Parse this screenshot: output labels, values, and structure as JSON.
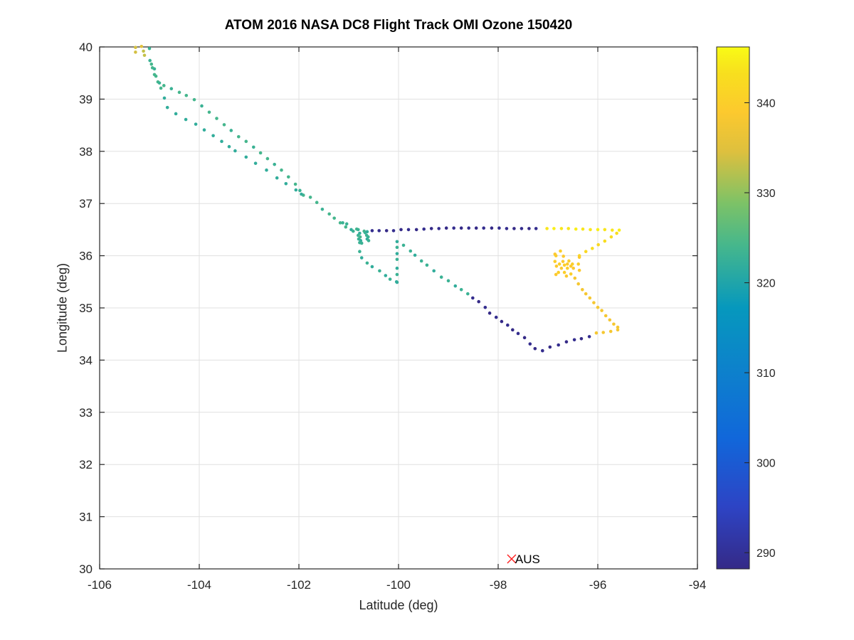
{
  "chart_data": {
    "type": "scatter",
    "title": "ATOM 2016 NASA DC8 Flight Track OMI Ozone 150420",
    "xlabel": "Latitude (deg)",
    "ylabel": "Longitude (deg)",
    "xlim": [
      -106,
      -94
    ],
    "ylim": [
      30,
      40
    ],
    "xticks": [
      -106,
      -104,
      -102,
      -100,
      -98,
      -96,
      -94
    ],
    "yticks": [
      30,
      31,
      32,
      33,
      34,
      35,
      36,
      37,
      38,
      39,
      40
    ],
    "grid": true,
    "colorbar": {
      "colormap": "parula",
      "min": 288.2,
      "max": 346.2,
      "ticks": [
        290,
        300,
        310,
        320,
        330,
        340
      ]
    },
    "marker": {
      "label": "AUS",
      "x": -97.73,
      "y": 30.19,
      "color": "#ff2020"
    },
    "points": [
      [
        -105.28,
        39.99,
        334
      ],
      [
        -105.28,
        39.9,
        334
      ],
      [
        -105.16,
        40.01,
        335
      ],
      [
        -105.12,
        39.92,
        333
      ],
      [
        -105.1,
        39.84,
        333
      ],
      [
        -105.0,
        39.97,
        323
      ],
      [
        -104.99,
        39.74,
        323
      ],
      [
        -104.96,
        39.67,
        324
      ],
      [
        -104.94,
        39.6,
        324
      ],
      [
        -104.9,
        39.58,
        323
      ],
      [
        -104.9,
        39.47,
        324
      ],
      [
        -104.87,
        39.44,
        324
      ],
      [
        -104.83,
        39.33,
        324
      ],
      [
        -104.8,
        39.31,
        323
      ],
      [
        -104.77,
        39.21,
        324
      ],
      [
        -104.71,
        39.26,
        324
      ],
      [
        -104.56,
        39.2,
        323
      ],
      [
        -104.4,
        39.13,
        324
      ],
      [
        -104.26,
        39.07,
        324
      ],
      [
        -104.1,
        38.99,
        324
      ],
      [
        -103.95,
        38.87,
        323
      ],
      [
        -103.8,
        38.75,
        324
      ],
      [
        -103.65,
        38.63,
        324
      ],
      [
        -103.5,
        38.51,
        324
      ],
      [
        -103.36,
        38.4,
        323
      ],
      [
        -103.21,
        38.28,
        324
      ],
      [
        -103.06,
        38.19,
        324
      ],
      [
        -102.91,
        38.08,
        323
      ],
      [
        -102.77,
        37.97,
        324
      ],
      [
        -102.63,
        37.86,
        324
      ],
      [
        -102.49,
        37.75,
        323
      ],
      [
        -102.35,
        37.64,
        324
      ],
      [
        -102.21,
        37.51,
        324
      ],
      [
        -102.07,
        37.37,
        324
      ],
      [
        -101.98,
        37.25,
        323
      ],
      [
        -101.91,
        37.16,
        324
      ],
      [
        -101.77,
        37.12,
        324
      ],
      [
        -101.64,
        37.02,
        324
      ],
      [
        -101.53,
        36.89,
        323
      ],
      [
        -101.39,
        36.8,
        324
      ],
      [
        -101.29,
        36.72,
        324
      ],
      [
        -101.17,
        36.63,
        324
      ],
      [
        -101.06,
        36.55,
        324
      ],
      [
        -104.7,
        39.02,
        322
      ],
      [
        -104.64,
        38.84,
        322
      ],
      [
        -104.47,
        38.72,
        322
      ],
      [
        -104.27,
        38.61,
        322
      ],
      [
        -104.07,
        38.52,
        322
      ],
      [
        -103.9,
        38.41,
        322
      ],
      [
        -103.72,
        38.3,
        322
      ],
      [
        -103.55,
        38.19,
        322
      ],
      [
        -103.4,
        38.09,
        322
      ],
      [
        -103.28,
        38.01,
        322
      ],
      [
        -103.06,
        37.89,
        322
      ],
      [
        -102.87,
        37.77,
        322
      ],
      [
        -102.65,
        37.64,
        322
      ],
      [
        -102.44,
        37.49,
        322
      ],
      [
        -102.26,
        37.38,
        322
      ],
      [
        -102.06,
        37.26,
        322
      ],
      [
        -101.95,
        37.18,
        322
      ],
      [
        -101.12,
        36.63,
        323
      ],
      [
        -101.04,
        36.61,
        323
      ],
      [
        -100.95,
        36.5,
        322
      ],
      [
        -100.91,
        36.47,
        323
      ],
      [
        -100.84,
        36.51,
        324
      ],
      [
        -100.81,
        36.5,
        323
      ],
      [
        -100.78,
        36.43,
        322
      ],
      [
        -100.81,
        36.39,
        323
      ],
      [
        -100.77,
        36.36,
        324
      ],
      [
        -100.8,
        36.32,
        323
      ],
      [
        -100.76,
        36.29,
        322
      ],
      [
        -100.78,
        36.25,
        323
      ],
      [
        -100.74,
        36.24,
        323
      ],
      [
        -100.69,
        36.47,
        324
      ],
      [
        -100.67,
        36.44,
        323
      ],
      [
        -100.63,
        36.46,
        322
      ],
      [
        -100.64,
        36.39,
        323
      ],
      [
        -100.61,
        36.36,
        323
      ],
      [
        -100.63,
        36.32,
        322
      ],
      [
        -100.6,
        36.29,
        323
      ],
      [
        -100.53,
        36.48,
        289
      ],
      [
        -100.39,
        36.48,
        289
      ],
      [
        -100.24,
        36.48,
        288
      ],
      [
        -100.1,
        36.48,
        289
      ],
      [
        -99.95,
        36.5,
        288
      ],
      [
        -99.8,
        36.5,
        289
      ],
      [
        -99.64,
        36.5,
        288
      ],
      [
        -99.49,
        36.51,
        289
      ],
      [
        -99.34,
        36.52,
        288
      ],
      [
        -99.19,
        36.52,
        289
      ],
      [
        -99.04,
        36.53,
        288
      ],
      [
        -98.89,
        36.53,
        289
      ],
      [
        -98.74,
        36.53,
        288
      ],
      [
        -98.59,
        36.53,
        289
      ],
      [
        -98.44,
        36.53,
        288
      ],
      [
        -98.29,
        36.53,
        289
      ],
      [
        -98.13,
        36.53,
        288
      ],
      [
        -97.98,
        36.53,
        289
      ],
      [
        -97.83,
        36.52,
        289
      ],
      [
        -97.68,
        36.52,
        288
      ],
      [
        -97.53,
        36.52,
        289
      ],
      [
        -97.38,
        36.52,
        288
      ],
      [
        -97.24,
        36.52,
        289
      ],
      [
        -97.02,
        36.52,
        344
      ],
      [
        -96.88,
        36.52,
        345
      ],
      [
        -96.73,
        36.52,
        344
      ],
      [
        -96.59,
        36.52,
        344
      ],
      [
        -96.44,
        36.51,
        345
      ],
      [
        -96.3,
        36.51,
        344
      ],
      [
        -96.15,
        36.5,
        344
      ],
      [
        -96.0,
        36.5,
        345
      ],
      [
        -95.86,
        36.5,
        344
      ],
      [
        -95.71,
        36.49,
        344
      ],
      [
        -95.57,
        36.49,
        345
      ],
      [
        -95.62,
        36.43,
        343
      ],
      [
        -95.73,
        36.36,
        343
      ],
      [
        -95.86,
        36.28,
        343
      ],
      [
        -95.99,
        36.21,
        342
      ],
      [
        -96.11,
        36.14,
        343
      ],
      [
        -96.24,
        36.08,
        342
      ],
      [
        -96.37,
        36.0,
        342
      ],
      [
        -96.84,
        36.0,
        340
      ],
      [
        -96.86,
        36.03,
        339
      ],
      [
        -96.75,
        36.09,
        340
      ],
      [
        -96.69,
        35.99,
        339
      ],
      [
        -96.86,
        35.89,
        340
      ],
      [
        -96.83,
        35.8,
        339
      ],
      [
        -96.77,
        35.84,
        340
      ],
      [
        -96.7,
        35.89,
        339
      ],
      [
        -96.67,
        35.82,
        340
      ],
      [
        -96.73,
        35.76,
        339
      ],
      [
        -96.79,
        35.68,
        340
      ],
      [
        -96.84,
        35.64,
        339
      ],
      [
        -96.67,
        35.68,
        340
      ],
      [
        -96.61,
        35.84,
        339
      ],
      [
        -96.58,
        35.9,
        340
      ],
      [
        -96.54,
        35.8,
        339
      ],
      [
        -96.51,
        35.84,
        340
      ],
      [
        -96.49,
        35.76,
        339
      ],
      [
        -96.61,
        35.76,
        340
      ],
      [
        -96.63,
        35.61,
        339
      ],
      [
        -96.54,
        35.65,
        340
      ],
      [
        -96.37,
        35.97,
        339
      ],
      [
        -96.39,
        35.84,
        340
      ],
      [
        -96.37,
        35.72,
        339
      ],
      [
        -96.46,
        35.57,
        338
      ],
      [
        -96.39,
        35.46,
        338
      ],
      [
        -96.31,
        35.35,
        338
      ],
      [
        -96.24,
        35.27,
        338
      ],
      [
        -96.16,
        35.19,
        338
      ],
      [
        -96.08,
        35.1,
        338
      ],
      [
        -96.0,
        35.01,
        338
      ],
      [
        -95.92,
        34.95,
        338
      ],
      [
        -95.84,
        34.85,
        338
      ],
      [
        -95.76,
        34.77,
        338
      ],
      [
        -95.68,
        34.69,
        338
      ],
      [
        -95.6,
        34.63,
        338
      ],
      [
        -95.6,
        34.58,
        338
      ],
      [
        -95.74,
        34.55,
        338
      ],
      [
        -95.89,
        34.53,
        338
      ],
      [
        -96.03,
        34.52,
        338
      ],
      [
        -96.17,
        34.45,
        289
      ],
      [
        -96.33,
        34.41,
        288
      ],
      [
        -96.47,
        34.39,
        289
      ],
      [
        -96.63,
        34.35,
        288
      ],
      [
        -96.79,
        34.29,
        289
      ],
      [
        -96.96,
        34.25,
        288
      ],
      [
        -97.11,
        34.18,
        289
      ],
      [
        -97.26,
        34.22,
        288
      ],
      [
        -97.36,
        34.31,
        289
      ],
      [
        -97.47,
        34.43,
        288
      ],
      [
        -97.6,
        34.51,
        289
      ],
      [
        -97.71,
        34.58,
        288
      ],
      [
        -97.81,
        34.67,
        289
      ],
      [
        -97.93,
        34.74,
        288
      ],
      [
        -98.04,
        34.82,
        289
      ],
      [
        -98.17,
        34.9,
        288
      ],
      [
        -98.26,
        35.01,
        289
      ],
      [
        -98.39,
        35.12,
        288
      ],
      [
        -98.51,
        35.19,
        289
      ],
      [
        -98.61,
        35.27,
        323
      ],
      [
        -98.74,
        35.35,
        323
      ],
      [
        -98.86,
        35.42,
        322
      ],
      [
        -99.0,
        35.52,
        323
      ],
      [
        -99.14,
        35.59,
        323
      ],
      [
        -99.29,
        35.71,
        322
      ],
      [
        -99.43,
        35.82,
        323
      ],
      [
        -99.54,
        35.9,
        323
      ],
      [
        -99.67,
        36.01,
        322
      ],
      [
        -99.76,
        36.09,
        323
      ],
      [
        -99.9,
        36.2,
        323
      ],
      [
        -100.03,
        36.27,
        322
      ],
      [
        -100.03,
        36.16,
        323
      ],
      [
        -100.03,
        36.04,
        322
      ],
      [
        -100.03,
        35.93,
        323
      ],
      [
        -100.03,
        35.76,
        322
      ],
      [
        -100.03,
        35.64,
        323
      ],
      [
        -100.03,
        35.49,
        322
      ],
      [
        -100.78,
        36.08,
        323
      ],
      [
        -100.74,
        35.96,
        322
      ],
      [
        -100.63,
        35.86,
        323
      ],
      [
        -100.53,
        35.79,
        322
      ],
      [
        -100.38,
        35.71,
        323
      ],
      [
        -100.26,
        35.62,
        322
      ],
      [
        -100.17,
        35.55,
        323
      ],
      [
        -100.04,
        35.5,
        322
      ]
    ]
  }
}
